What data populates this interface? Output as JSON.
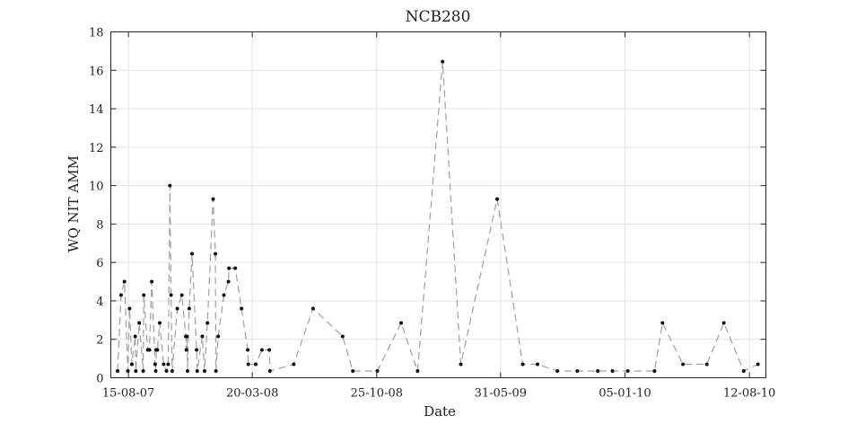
{
  "chart_data": {
    "type": "line",
    "title": "NCB280",
    "xlabel": "Date",
    "ylabel": "WQ NIT AMM",
    "ylim": [
      0,
      18
    ],
    "yticks": [
      0,
      2,
      4,
      6,
      8,
      10,
      12,
      14,
      16,
      18
    ],
    "xlim": [
      "2007-07-15",
      "2010-09-10"
    ],
    "xticks": [
      {
        "date": "2007-08-15",
        "label": "15-08-07"
      },
      {
        "date": "2008-03-20",
        "label": "20-03-08"
      },
      {
        "date": "2008-10-25",
        "label": "25-10-08"
      },
      {
        "date": "2009-05-31",
        "label": "31-05-09"
      },
      {
        "date": "2010-01-05",
        "label": "05-01-10"
      },
      {
        "date": "2010-08-12",
        "label": "12-08-10"
      }
    ],
    "grid": true,
    "line_style": "dashed",
    "marker": "dot",
    "series": [
      {
        "points": [
          [
            "2007-07-27",
            0.35
          ],
          [
            "2007-08-02",
            4.3
          ],
          [
            "2007-08-08",
            5.0
          ],
          [
            "2007-08-14",
            0.35
          ],
          [
            "2007-08-17",
            3.6
          ],
          [
            "2007-08-21",
            0.7
          ],
          [
            "2007-08-27",
            2.15
          ],
          [
            "2007-08-28",
            0.35
          ],
          [
            "2007-09-03",
            2.85
          ],
          [
            "2007-09-10",
            0.35
          ],
          [
            "2007-09-11",
            4.3
          ],
          [
            "2007-09-18",
            1.45
          ],
          [
            "2007-09-21",
            1.45
          ],
          [
            "2007-09-25",
            5.0
          ],
          [
            "2007-10-01",
            0.7
          ],
          [
            "2007-10-02",
            0.35
          ],
          [
            "2007-10-03",
            1.45
          ],
          [
            "2007-10-05",
            1.45
          ],
          [
            "2007-10-09",
            2.85
          ],
          [
            "2007-10-16",
            0.7
          ],
          [
            "2007-10-21",
            0.35
          ],
          [
            "2007-10-24",
            0.7
          ],
          [
            "2007-10-27",
            10.0
          ],
          [
            "2007-10-29",
            4.3
          ],
          [
            "2007-10-31",
            0.35
          ],
          [
            "2007-11-09",
            3.6
          ],
          [
            "2007-11-17",
            4.3
          ],
          [
            "2007-11-24",
            2.15
          ],
          [
            "2007-11-25",
            1.45
          ],
          [
            "2007-11-26",
            2.15
          ],
          [
            "2007-11-27",
            0.35
          ],
          [
            "2007-11-30",
            3.6
          ],
          [
            "2007-12-05",
            6.45
          ],
          [
            "2007-12-13",
            1.45
          ],
          [
            "2007-12-14",
            0.35
          ],
          [
            "2007-12-23",
            2.15
          ],
          [
            "2007-12-27",
            0.35
          ],
          [
            "2008-01-01",
            2.85
          ],
          [
            "2008-01-11",
            9.3
          ],
          [
            "2008-01-15",
            6.45
          ],
          [
            "2008-01-16",
            0.35
          ],
          [
            "2008-01-20",
            2.15
          ],
          [
            "2008-01-30",
            4.3
          ],
          [
            "2008-02-07",
            5.0
          ],
          [
            "2008-02-08",
            5.7
          ],
          [
            "2008-02-19",
            5.7
          ],
          [
            "2008-03-01",
            3.6
          ],
          [
            "2008-03-12",
            1.45
          ],
          [
            "2008-03-13",
            0.7
          ],
          [
            "2008-03-26",
            0.7
          ],
          [
            "2008-04-06",
            1.45
          ],
          [
            "2008-04-19",
            1.45
          ],
          [
            "2008-04-20",
            0.35
          ],
          [
            "2008-06-01",
            0.7
          ],
          [
            "2008-07-05",
            3.6
          ],
          [
            "2008-08-26",
            2.15
          ],
          [
            "2008-09-13",
            0.35
          ],
          [
            "2008-10-26",
            0.35
          ],
          [
            "2008-12-07",
            2.85
          ],
          [
            "2009-01-05",
            0.35
          ],
          [
            "2009-02-18",
            16.45
          ],
          [
            "2009-03-22",
            0.7
          ],
          [
            "2009-05-25",
            9.3
          ],
          [
            "2009-07-09",
            0.7
          ],
          [
            "2009-08-04",
            0.7
          ],
          [
            "2009-09-08",
            0.35
          ],
          [
            "2009-10-13",
            0.35
          ],
          [
            "2009-11-18",
            0.35
          ],
          [
            "2009-12-14",
            0.35
          ],
          [
            "2010-01-10",
            0.35
          ],
          [
            "2010-02-26",
            0.35
          ],
          [
            "2010-03-12",
            2.85
          ],
          [
            "2010-04-17",
            0.7
          ],
          [
            "2010-05-29",
            0.7
          ],
          [
            "2010-06-28",
            2.85
          ],
          [
            "2010-08-02",
            0.35
          ],
          [
            "2010-08-27",
            0.7
          ]
        ]
      }
    ]
  }
}
